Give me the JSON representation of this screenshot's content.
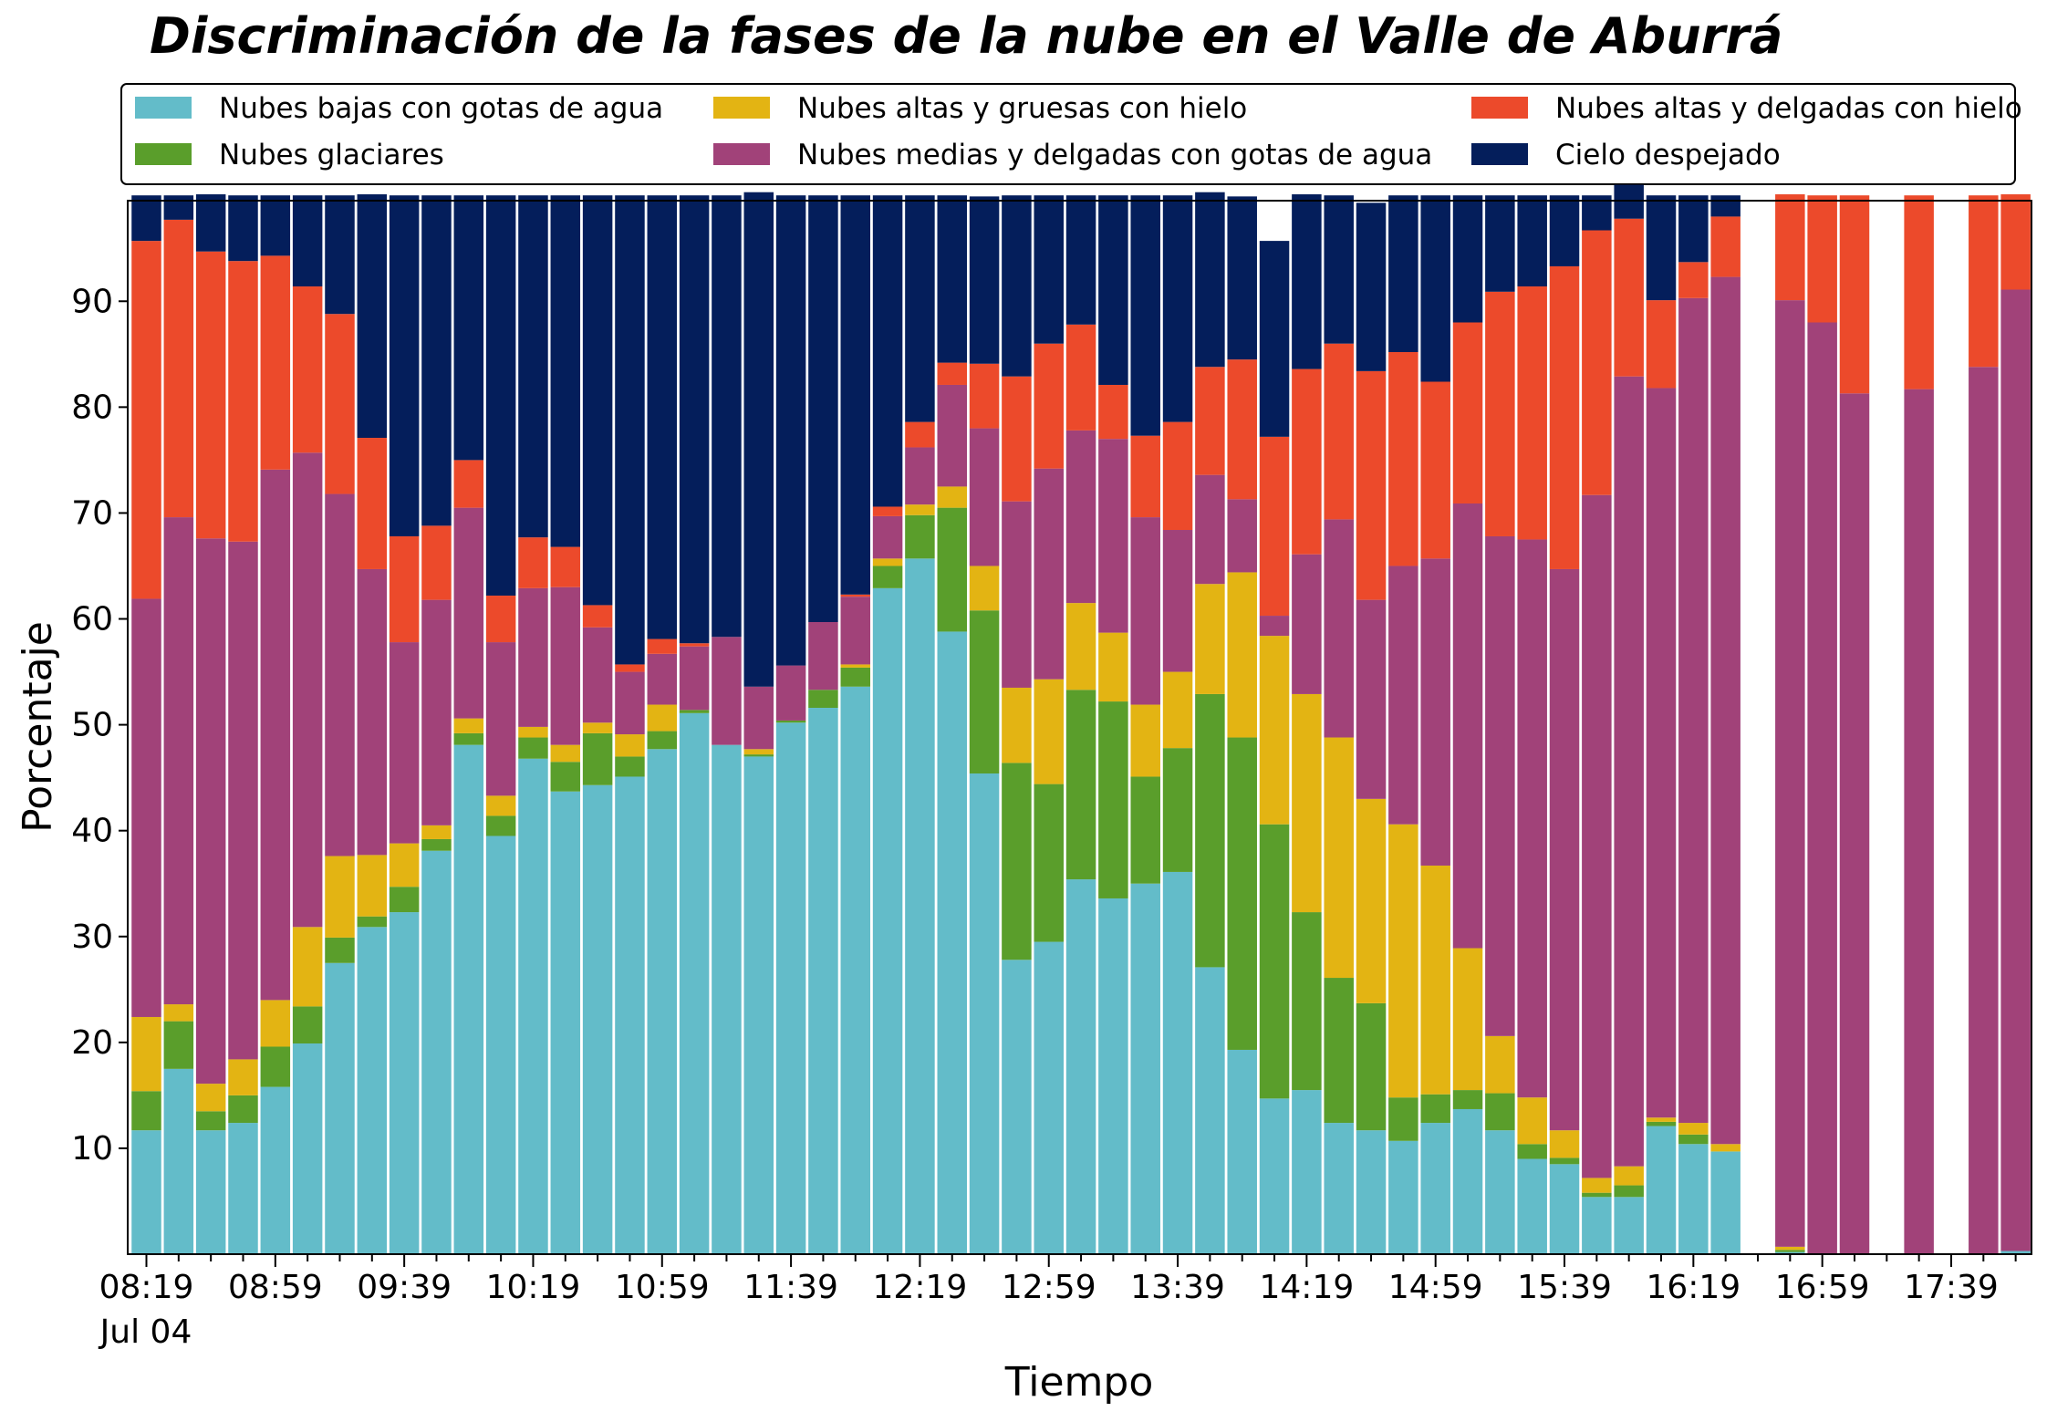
{
  "chart_data": {
    "type": "bar",
    "stacked": true,
    "title": "Discriminación de la fases de la nube en el Valle de Aburrá",
    "xlabel": "Tiempo",
    "ylabel": "Porcentaje",
    "ylim": [
      0,
      100
    ],
    "yticks": [
      10,
      20,
      30,
      40,
      50,
      60,
      70,
      80,
      90
    ],
    "x_start": "08:19",
    "x_step_minutes": 10,
    "n_slots": 59,
    "xtick_every": 4,
    "xtick_labels": [
      "08:19",
      "08:59",
      "09:39",
      "10:19",
      "10:59",
      "11:39",
      "12:19",
      "12:59",
      "13:39",
      "14:19",
      "14:59",
      "15:39",
      "16:19",
      "16:59",
      "17:39"
    ],
    "xtick_sublabel": "Jul 04",
    "legend_position": "top",
    "legend_columns": 3,
    "grid": false,
    "series": [
      {
        "name": "Nubes bajas con gotas de agua",
        "color": "#63bcc9",
        "values": [
          11.7,
          17.5,
          11.7,
          12.4,
          15.8,
          19.9,
          27.5,
          30.9,
          32.3,
          38.1,
          48.1,
          39.5,
          46.8,
          43.7,
          44.3,
          45.1,
          47.7,
          51.1,
          48.1,
          47.0,
          50.2,
          51.6,
          53.6,
          62.9,
          65.7,
          58.8,
          45.4,
          27.8,
          29.5,
          35.4,
          33.6,
          35.0,
          36.1,
          27.1,
          19.3,
          14.7,
          15.5,
          12.4,
          11.7,
          10.7,
          12.4,
          13.7,
          11.7,
          9.0,
          8.5,
          5.4,
          5.4,
          12.1,
          10.4,
          9.7,
          null,
          0.2,
          0,
          0,
          null,
          0,
          null,
          0,
          0.3
        ]
      },
      {
        "name": "Nubes glaciares",
        "color": "#5a9e2b",
        "values": [
          3.7,
          4.5,
          1.8,
          2.6,
          3.8,
          3.5,
          2.4,
          1.0,
          2.4,
          1.1,
          1.1,
          1.9,
          2.0,
          2.8,
          4.9,
          1.9,
          1.7,
          0.3,
          0,
          0.2,
          0.2,
          1.7,
          1.8,
          2.1,
          4.1,
          11.7,
          15.4,
          18.6,
          14.9,
          17.9,
          18.6,
          10.1,
          11.7,
          25.8,
          29.5,
          25.9,
          16.8,
          13.7,
          12.0,
          4.1,
          2.7,
          1.8,
          3.5,
          1.4,
          0.6,
          0.4,
          1.1,
          0.4,
          0.9,
          0,
          null,
          0.2,
          0,
          0,
          null,
          0,
          null,
          0,
          0
        ]
      },
      {
        "name": "Nubes altas y gruesas con hielo",
        "color": "#e3b413",
        "values": [
          7.0,
          1.6,
          2.6,
          3.4,
          4.4,
          7.5,
          7.7,
          5.8,
          4.1,
          1.3,
          1.4,
          1.9,
          1.0,
          1.6,
          1.0,
          2.1,
          2.5,
          0,
          0,
          0.5,
          0,
          0,
          0.3,
          0.7,
          1.0,
          2.0,
          4.2,
          7.1,
          9.9,
          8.2,
          6.5,
          6.8,
          7.2,
          10.4,
          15.6,
          17.8,
          20.6,
          22.7,
          19.3,
          25.8,
          21.6,
          13.4,
          5.4,
          4.4,
          2.6,
          1.4,
          1.8,
          0.4,
          1.1,
          0.7,
          null,
          0.3,
          0,
          0,
          null,
          0,
          null,
          0,
          0
        ]
      },
      {
        "name": "Nubes medias y delgadas con gotas de agua",
        "color": "#a14279",
        "values": [
          39.5,
          46.0,
          51.5,
          48.9,
          50.1,
          44.8,
          34.2,
          27.0,
          19.0,
          21.3,
          19.9,
          14.5,
          13.1,
          14.9,
          9.0,
          5.9,
          4.8,
          6.0,
          10.2,
          5.9,
          5.2,
          6.4,
          6.4,
          4.0,
          5.4,
          9.6,
          13.0,
          17.6,
          19.9,
          16.3,
          18.3,
          17.7,
          13.4,
          10.3,
          6.9,
          1.9,
          13.2,
          20.6,
          18.8,
          24.4,
          29.0,
          42.0,
          47.2,
          52.7,
          53.0,
          64.5,
          74.6,
          68.9,
          77.9,
          81.9,
          null,
          89.4,
          88.0,
          81.3,
          null,
          81.7,
          null,
          83.8,
          90.8
        ]
      },
      {
        "name": "Nubes altas y delgadas con hielo",
        "color": "#ec4a2b",
        "values": [
          33.8,
          28.1,
          27.1,
          26.5,
          20.2,
          15.7,
          17.0,
          12.4,
          10.0,
          7.0,
          4.5,
          4.4,
          4.8,
          3.8,
          2.1,
          0.7,
          1.4,
          0.3,
          0,
          0,
          0,
          0,
          0.2,
          0.9,
          2.4,
          2.1,
          6.1,
          11.8,
          11.8,
          10.0,
          5.1,
          7.7,
          10.2,
          10.2,
          13.2,
          16.9,
          17.5,
          16.6,
          21.6,
          20.2,
          16.7,
          17.1,
          23.1,
          23.9,
          28.6,
          25.0,
          14.9,
          8.3,
          3.4,
          5.7,
          null,
          10.0,
          12.0,
          18.7,
          null,
          18.3,
          null,
          16.2,
          9.0
        ]
      },
      {
        "name": "Cielo despejado",
        "color": "#041e5b",
        "values": [
          4.3,
          2.3,
          5.4,
          6.2,
          5.7,
          8.6,
          11.2,
          23.0,
          32.2,
          31.2,
          25.0,
          37.8,
          32.3,
          33.2,
          38.7,
          44.3,
          41.9,
          42.3,
          41.7,
          46.7,
          44.4,
          40.3,
          37.7,
          29.4,
          21.4,
          15.8,
          15.8,
          17.1,
          14.0,
          12.2,
          17.9,
          22.7,
          21.4,
          16.5,
          15.4,
          18.5,
          16.5,
          14.0,
          15.9,
          14.8,
          17.6,
          12.0,
          9.1,
          8.6,
          6.7,
          3.3,
          3.2,
          9.9,
          6.3,
          2.0,
          null,
          0,
          0,
          0,
          null,
          0,
          null,
          0,
          0
        ]
      }
    ]
  }
}
